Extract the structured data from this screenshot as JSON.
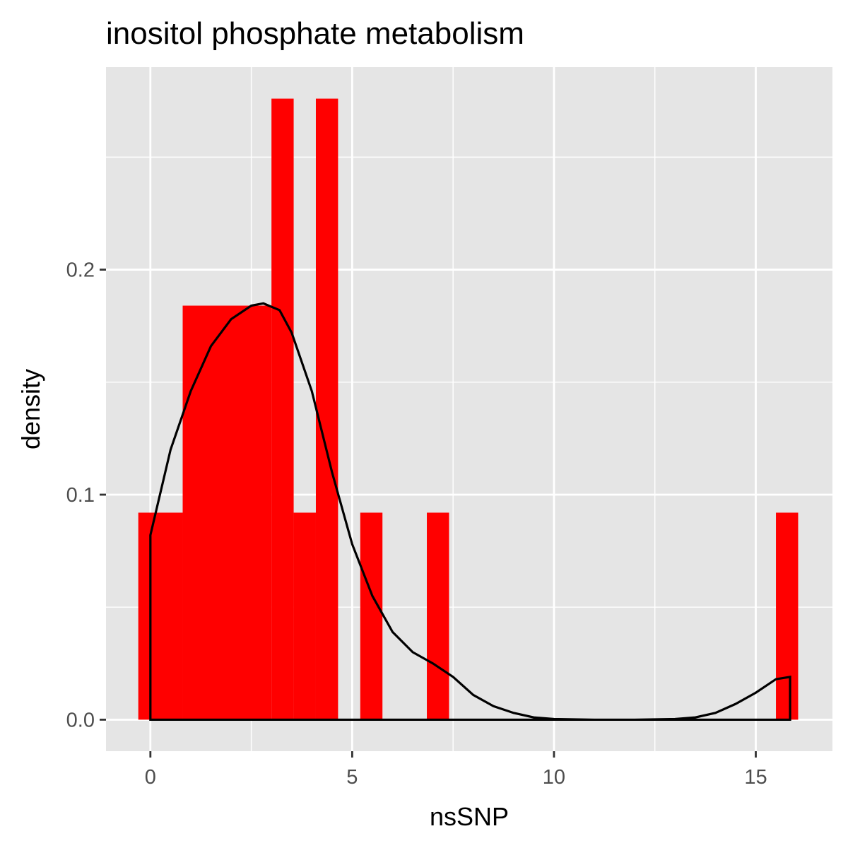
{
  "chart_data": {
    "type": "bar",
    "title": "inositol phosphate metabolism",
    "xlabel": "nsSNP",
    "ylabel": "density",
    "xlim": [
      -1.1,
      16.9
    ],
    "ylim": [
      -0.014,
      0.29
    ],
    "x_ticks": [
      0,
      5,
      10,
      15
    ],
    "x_tick_labels": [
      "0",
      "5",
      "10",
      "15"
    ],
    "y_ticks": [
      0.0,
      0.1,
      0.2
    ],
    "y_tick_labels": [
      "0.0",
      "0.1",
      "0.2"
    ],
    "grid": true,
    "legend": "none",
    "colors": {
      "bars": "#ff0000",
      "density_line": "#000000",
      "panel_background": "#e5e5e5",
      "grid": "#ffffff"
    },
    "histogram": {
      "bin_width": 0.55,
      "bins": [
        {
          "x0": -0.3,
          "x1": 0.8,
          "density": 0.092
        },
        {
          "x0": 0.8,
          "x1": 3.0,
          "density": 0.184
        },
        {
          "x0": 3.0,
          "x1": 3.55,
          "density": 0.276
        },
        {
          "x0": 3.55,
          "x1": 4.1,
          "density": 0.092
        },
        {
          "x0": 4.1,
          "x1": 4.65,
          "density": 0.276
        },
        {
          "x0": 5.2,
          "x1": 5.75,
          "density": 0.092
        },
        {
          "x0": 6.85,
          "x1": 7.4,
          "density": 0.092
        },
        {
          "x0": 15.5,
          "x1": 16.05,
          "density": 0.092
        }
      ]
    },
    "density_curve": {
      "x": [
        0,
        0.5,
        1,
        1.5,
        2,
        2.5,
        2.8,
        3.2,
        3.5,
        4,
        4.5,
        5,
        5.5,
        6,
        6.5,
        7,
        7.5,
        8,
        8.5,
        9,
        9.5,
        10,
        11,
        12,
        13,
        13.5,
        14,
        14.5,
        15,
        15.5,
        15.85
      ],
      "y": [
        0.082,
        0.12,
        0.146,
        0.166,
        0.178,
        0.184,
        0.185,
        0.182,
        0.172,
        0.146,
        0.11,
        0.078,
        0.055,
        0.039,
        0.03,
        0.025,
        0.019,
        0.011,
        0.006,
        0.003,
        0.001,
        0.0003,
        0.0,
        0.0,
        0.0003,
        0.001,
        0.003,
        0.007,
        0.012,
        0.018,
        0.019
      ]
    }
  }
}
